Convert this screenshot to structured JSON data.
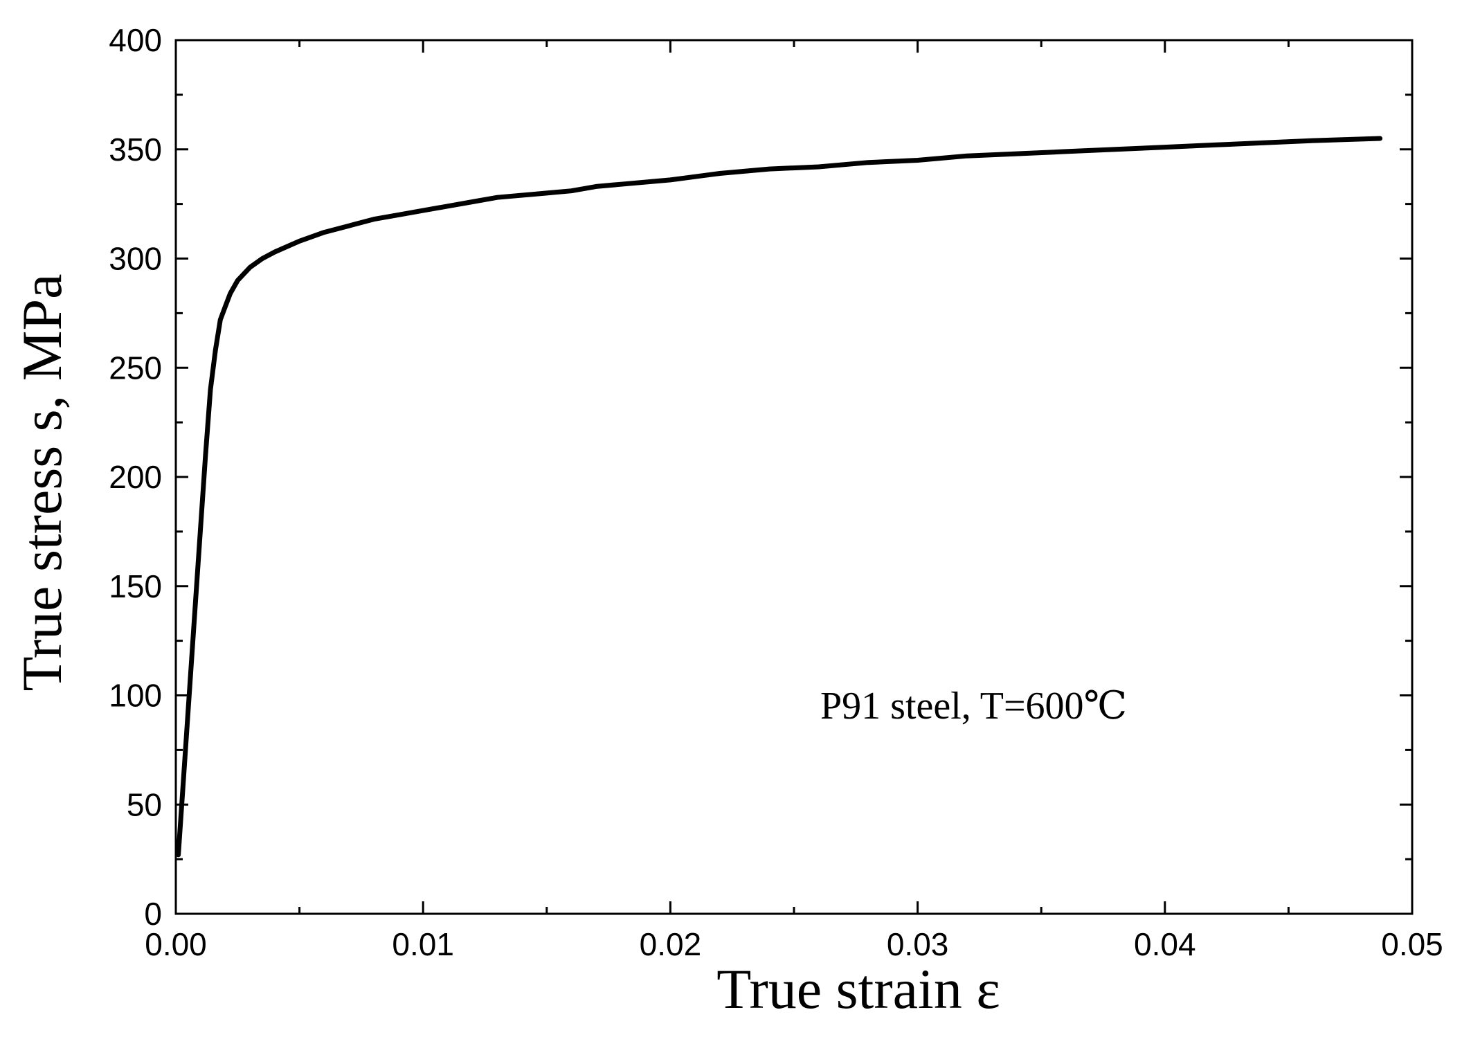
{
  "chart_data": {
    "type": "line",
    "title": "",
    "xlabel": "True strain ε",
    "ylabel": "True stress s, MPa",
    "xlim": [
      0,
      0.05
    ],
    "ylim": [
      0,
      400
    ],
    "xticks": [
      0.0,
      0.01,
      0.02,
      0.03,
      0.04,
      0.05
    ],
    "xtick_labels": [
      "0.00",
      "0.01",
      "0.02",
      "0.03",
      "0.04",
      "0.05"
    ],
    "yticks": [
      0,
      50,
      100,
      150,
      200,
      250,
      300,
      350,
      400
    ],
    "ytick_labels": [
      "0",
      "50",
      "100",
      "150",
      "200",
      "250",
      "300",
      "350",
      "400"
    ],
    "grid": false,
    "legend": "none",
    "annotation": "P91 steel,  T=600℃",
    "series": [
      {
        "color": "#000000",
        "x": [
          0.0001,
          0.0003,
          0.0006,
          0.0009,
          0.0012,
          0.0014,
          0.0016,
          0.0018,
          0.002,
          0.0022,
          0.0025,
          0.003,
          0.0035,
          0.004,
          0.005,
          0.006,
          0.007,
          0.008,
          0.009,
          0.01,
          0.011,
          0.012,
          0.013,
          0.015,
          0.016,
          0.017,
          0.018,
          0.02,
          0.022,
          0.024,
          0.026,
          0.028,
          0.03,
          0.032,
          0.034,
          0.036,
          0.038,
          0.04,
          0.042,
          0.044,
          0.046,
          0.0487
        ],
        "y": [
          27,
          60,
          110,
          160,
          210,
          240,
          258,
          272,
          278,
          284,
          290,
          296,
          300,
          303,
          308,
          312,
          315,
          318,
          320,
          322,
          324,
          326,
          328,
          330,
          331,
          333,
          334,
          336,
          339,
          341,
          342,
          344,
          345,
          347,
          348,
          349,
          350,
          351,
          352,
          353,
          354,
          355
        ]
      }
    ]
  }
}
